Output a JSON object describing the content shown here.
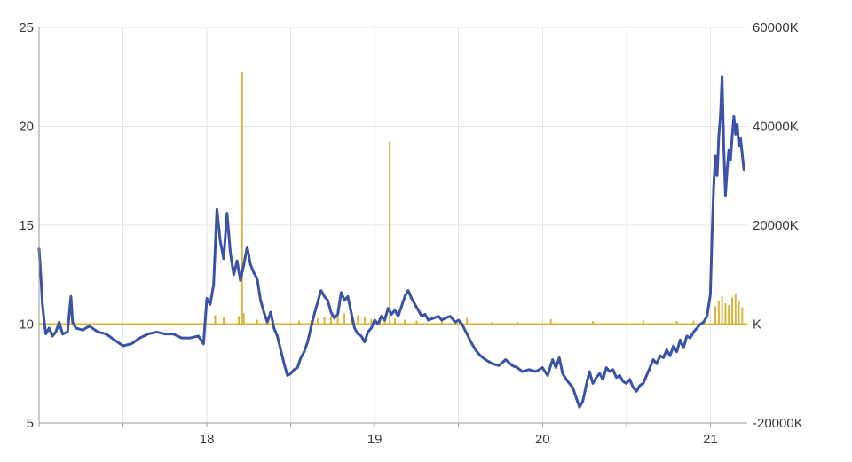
{
  "chart_data": {
    "type": "line",
    "title": "",
    "xlabel": "",
    "ylabel": "",
    "x_axis": {
      "range": [
        17.0,
        21.22
      ],
      "tick_labels": [
        "18",
        "19",
        "20",
        "21"
      ],
      "tick_values": [
        18,
        19,
        20,
        21
      ]
    },
    "y_left": {
      "range": [
        5,
        25
      ],
      "tick_values": [
        5,
        10,
        15,
        20,
        25
      ],
      "tick_labels": [
        "5",
        "10",
        "15",
        "20",
        "25"
      ]
    },
    "y_right": {
      "range": [
        -20000,
        60000
      ],
      "tick_values": [
        -20000,
        0,
        20000,
        40000,
        60000
      ],
      "tick_labels": [
        "-20000K",
        "K",
        "20000K",
        "40000K",
        "60000K"
      ]
    },
    "grid": true,
    "series": [
      {
        "axis": "left",
        "kind": "line",
        "color": "#3a53a8",
        "points": [
          [
            17.0,
            13.8
          ],
          [
            17.01,
            12.5
          ],
          [
            17.02,
            11.0
          ],
          [
            17.03,
            10.2
          ],
          [
            17.04,
            9.5
          ],
          [
            17.06,
            9.8
          ],
          [
            17.08,
            9.4
          ],
          [
            17.1,
            9.6
          ],
          [
            17.12,
            10.1
          ],
          [
            17.14,
            9.5
          ],
          [
            17.17,
            9.6
          ],
          [
            17.19,
            11.4
          ],
          [
            17.2,
            10.1
          ],
          [
            17.22,
            9.8
          ],
          [
            17.26,
            9.7
          ],
          [
            17.3,
            9.9
          ],
          [
            17.35,
            9.6
          ],
          [
            17.4,
            9.5
          ],
          [
            17.45,
            9.2
          ],
          [
            17.5,
            8.9
          ],
          [
            17.55,
            9.0
          ],
          [
            17.6,
            9.3
          ],
          [
            17.65,
            9.5
          ],
          [
            17.7,
            9.6
          ],
          [
            17.75,
            9.5
          ],
          [
            17.8,
            9.5
          ],
          [
            17.85,
            9.3
          ],
          [
            17.9,
            9.3
          ],
          [
            17.95,
            9.4
          ],
          [
            17.98,
            9.0
          ],
          [
            18.0,
            11.3
          ],
          [
            18.02,
            11.0
          ],
          [
            18.04,
            12.0
          ],
          [
            18.06,
            15.8
          ],
          [
            18.08,
            14.2
          ],
          [
            18.1,
            13.3
          ],
          [
            18.12,
            15.6
          ],
          [
            18.14,
            13.6
          ],
          [
            18.16,
            12.5
          ],
          [
            18.18,
            13.2
          ],
          [
            18.2,
            12.2
          ],
          [
            18.22,
            13.0
          ],
          [
            18.24,
            13.9
          ],
          [
            18.26,
            13.0
          ],
          [
            18.28,
            12.6
          ],
          [
            18.3,
            12.3
          ],
          [
            18.32,
            11.2
          ],
          [
            18.34,
            10.6
          ],
          [
            18.36,
            10.1
          ],
          [
            18.38,
            10.6
          ],
          [
            18.4,
            9.8
          ],
          [
            18.42,
            9.4
          ],
          [
            18.44,
            8.7
          ],
          [
            18.46,
            8.0
          ],
          [
            18.48,
            7.4
          ],
          [
            18.5,
            7.5
          ],
          [
            18.52,
            7.7
          ],
          [
            18.54,
            7.8
          ],
          [
            18.56,
            8.3
          ],
          [
            18.58,
            8.6
          ],
          [
            18.6,
            9.1
          ],
          [
            18.62,
            9.8
          ],
          [
            18.64,
            10.5
          ],
          [
            18.66,
            11.1
          ],
          [
            18.68,
            11.7
          ],
          [
            18.7,
            11.4
          ],
          [
            18.72,
            11.2
          ],
          [
            18.74,
            10.6
          ],
          [
            18.76,
            10.3
          ],
          [
            18.78,
            10.5
          ],
          [
            18.8,
            11.6
          ],
          [
            18.82,
            11.2
          ],
          [
            18.84,
            11.4
          ],
          [
            18.86,
            10.6
          ],
          [
            18.88,
            9.8
          ],
          [
            18.9,
            9.5
          ],
          [
            18.92,
            9.4
          ],
          [
            18.94,
            9.1
          ],
          [
            18.96,
            9.6
          ],
          [
            18.98,
            9.8
          ],
          [
            19.0,
            10.2
          ],
          [
            19.02,
            10.0
          ],
          [
            19.04,
            10.4
          ],
          [
            19.06,
            10.2
          ],
          [
            19.08,
            10.8
          ],
          [
            19.1,
            10.5
          ],
          [
            19.12,
            10.7
          ],
          [
            19.14,
            10.4
          ],
          [
            19.16,
            10.9
          ],
          [
            19.18,
            11.4
          ],
          [
            19.2,
            11.7
          ],
          [
            19.22,
            11.3
          ],
          [
            19.24,
            11.0
          ],
          [
            19.26,
            10.7
          ],
          [
            19.28,
            10.4
          ],
          [
            19.3,
            10.5
          ],
          [
            19.32,
            10.2
          ],
          [
            19.35,
            10.3
          ],
          [
            19.38,
            10.4
          ],
          [
            19.4,
            10.2
          ],
          [
            19.42,
            10.3
          ],
          [
            19.45,
            10.4
          ],
          [
            19.48,
            10.1
          ],
          [
            19.5,
            10.2
          ],
          [
            19.52,
            10.0
          ],
          [
            19.55,
            9.5
          ],
          [
            19.58,
            9.0
          ],
          [
            19.6,
            8.7
          ],
          [
            19.63,
            8.4
          ],
          [
            19.66,
            8.2
          ],
          [
            19.7,
            8.0
          ],
          [
            19.74,
            7.9
          ],
          [
            19.78,
            8.2
          ],
          [
            19.82,
            7.9
          ],
          [
            19.85,
            7.8
          ],
          [
            19.88,
            7.6
          ],
          [
            19.92,
            7.7
          ],
          [
            19.96,
            7.6
          ],
          [
            20.0,
            7.8
          ],
          [
            20.03,
            7.4
          ],
          [
            20.06,
            8.2
          ],
          [
            20.08,
            7.8
          ],
          [
            20.1,
            8.3
          ],
          [
            20.12,
            7.5
          ],
          [
            20.15,
            7.1
          ],
          [
            20.18,
            6.8
          ],
          [
            20.2,
            6.3
          ],
          [
            20.22,
            5.8
          ],
          [
            20.24,
            6.1
          ],
          [
            20.26,
            6.9
          ],
          [
            20.28,
            7.6
          ],
          [
            20.3,
            7.0
          ],
          [
            20.32,
            7.3
          ],
          [
            20.34,
            7.5
          ],
          [
            20.36,
            7.2
          ],
          [
            20.38,
            7.8
          ],
          [
            20.4,
            7.6
          ],
          [
            20.42,
            7.7
          ],
          [
            20.44,
            7.3
          ],
          [
            20.46,
            7.4
          ],
          [
            20.48,
            7.1
          ],
          [
            20.5,
            7.0
          ],
          [
            20.52,
            7.2
          ],
          [
            20.54,
            6.8
          ],
          [
            20.56,
            6.6
          ],
          [
            20.58,
            6.9
          ],
          [
            20.6,
            7.0
          ],
          [
            20.62,
            7.4
          ],
          [
            20.64,
            7.8
          ],
          [
            20.66,
            8.2
          ],
          [
            20.68,
            8.0
          ],
          [
            20.7,
            8.4
          ],
          [
            20.72,
            8.3
          ],
          [
            20.74,
            8.7
          ],
          [
            20.76,
            8.4
          ],
          [
            20.78,
            8.9
          ],
          [
            20.8,
            8.6
          ],
          [
            20.82,
            9.2
          ],
          [
            20.84,
            8.8
          ],
          [
            20.86,
            9.4
          ],
          [
            20.88,
            9.3
          ],
          [
            20.9,
            9.6
          ],
          [
            20.92,
            9.8
          ],
          [
            20.94,
            10.0
          ],
          [
            20.96,
            10.1
          ],
          [
            20.98,
            10.4
          ],
          [
            21.0,
            11.5
          ],
          [
            21.01,
            14.5
          ],
          [
            21.02,
            17.0
          ],
          [
            21.03,
            18.5
          ],
          [
            21.04,
            17.5
          ],
          [
            21.05,
            19.5
          ],
          [
            21.06,
            20.5
          ],
          [
            21.07,
            22.5
          ],
          [
            21.08,
            19.0
          ],
          [
            21.09,
            16.5
          ],
          [
            21.1,
            17.8
          ],
          [
            21.11,
            18.8
          ],
          [
            21.12,
            18.3
          ],
          [
            21.13,
            19.5
          ],
          [
            21.14,
            20.5
          ],
          [
            21.15,
            19.6
          ],
          [
            21.16,
            20.1
          ],
          [
            21.17,
            19.0
          ],
          [
            21.18,
            19.4
          ],
          [
            21.19,
            18.6
          ],
          [
            21.2,
            17.8
          ]
        ]
      },
      {
        "axis": "right",
        "kind": "volume_bars",
        "color": "#d9b43a",
        "baseline": 0,
        "bars": [
          [
            18.21,
            51000
          ],
          [
            19.09,
            37000
          ],
          [
            18.05,
            1800
          ],
          [
            18.1,
            1500
          ],
          [
            18.19,
            1600
          ],
          [
            18.22,
            2200
          ],
          [
            18.3,
            900
          ],
          [
            18.55,
            700
          ],
          [
            18.62,
            800
          ],
          [
            18.66,
            1200
          ],
          [
            18.7,
            1500
          ],
          [
            18.74,
            1800
          ],
          [
            18.78,
            2600
          ],
          [
            18.82,
            2200
          ],
          [
            18.86,
            3100
          ],
          [
            18.9,
            1800
          ],
          [
            18.94,
            1400
          ],
          [
            18.98,
            1000
          ],
          [
            19.03,
            1200
          ],
          [
            19.06,
            1600
          ],
          [
            19.12,
            1100
          ],
          [
            19.18,
            900
          ],
          [
            19.25,
            700
          ],
          [
            19.4,
            600
          ],
          [
            19.55,
            1300
          ],
          [
            19.7,
            400
          ],
          [
            19.85,
            500
          ],
          [
            20.05,
            1000
          ],
          [
            20.3,
            600
          ],
          [
            20.6,
            800
          ],
          [
            20.8,
            600
          ],
          [
            20.9,
            700
          ],
          [
            20.96,
            800
          ],
          [
            21.03,
            3600
          ],
          [
            21.05,
            4800
          ],
          [
            21.07,
            5600
          ],
          [
            21.09,
            4200
          ],
          [
            21.11,
            3800
          ],
          [
            21.13,
            5400
          ],
          [
            21.15,
            6200
          ],
          [
            21.17,
            4600
          ],
          [
            21.19,
            3400
          ]
        ]
      }
    ]
  }
}
